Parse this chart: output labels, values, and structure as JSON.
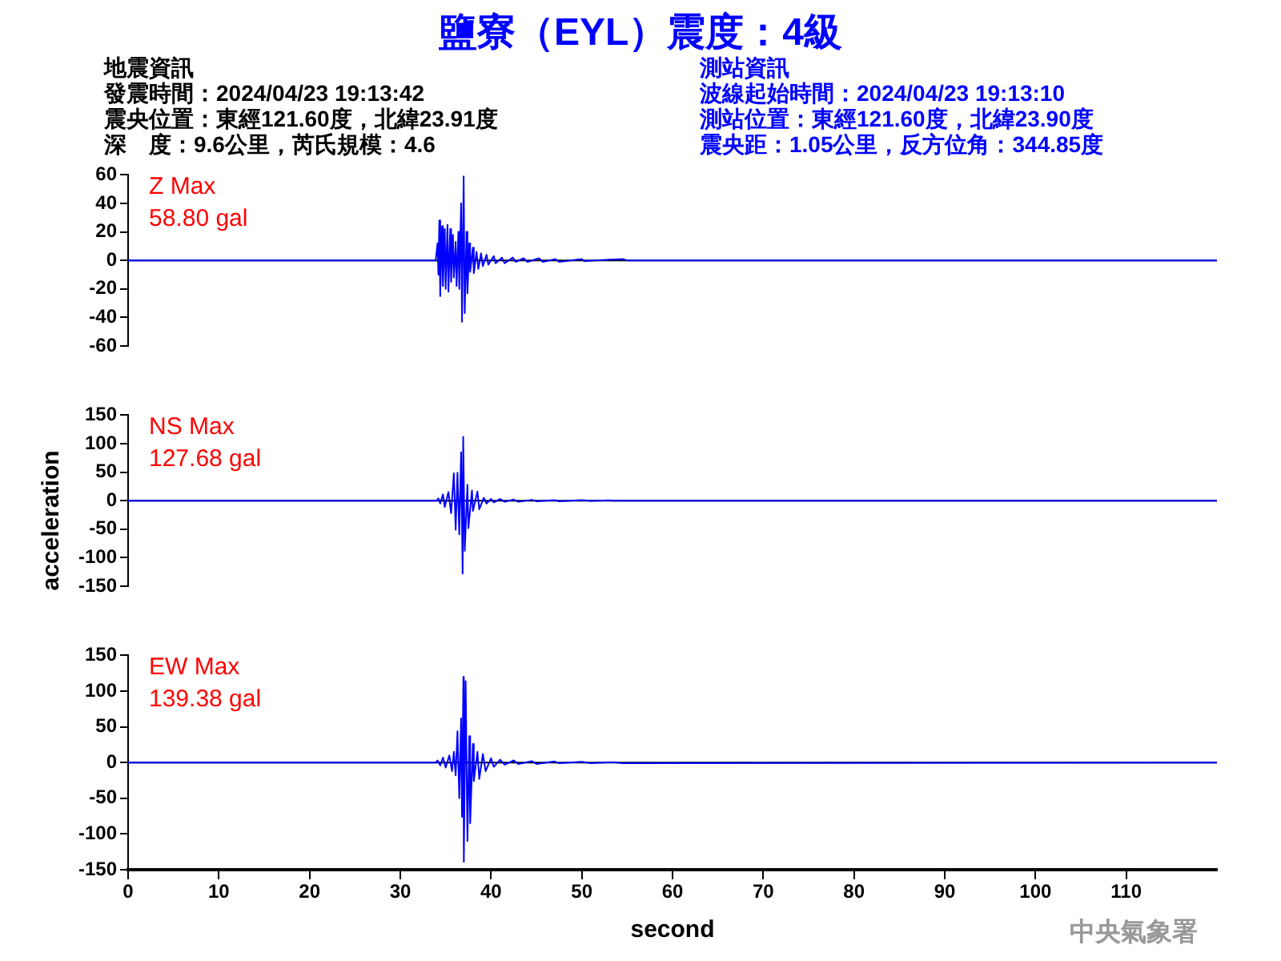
{
  "chart_data": [
    {
      "type": "line",
      "title": "鹽寮（EYL）震度：4級",
      "annotations": [
        "Z Max\n58.80 gal",
        "地震資訊",
        "發震時間：2024/04/23 19:13:42",
        "震央位置：東經121.60度，北緯23.91度",
        "深　度：9.6公里，芮氏規模：4.6",
        "測站資訊",
        "波線起始時間：2024/04/23 19:13:10",
        "測站位置：東經121.60度，北緯23.90度",
        "震央距：1.05公里，反方位角：344.85度"
      ],
      "series": [
        {
          "color": "#0000ff",
          "x": [
            0,
            33.9,
            34.1,
            34.2,
            34.3,
            34.4,
            34.6,
            34.7,
            34.9,
            35.0,
            35.2,
            35.3,
            35.5,
            35.6,
            35.8,
            35.9,
            36.1,
            36.2,
            36.4,
            36.5,
            36.7,
            36.8,
            36.98,
            37.1,
            37.3,
            37.4,
            37.6,
            37.7,
            38.0,
            38.1,
            38.4,
            38.6,
            38.9,
            39.1,
            39.5,
            39.7,
            40.3,
            40.5,
            41.2,
            41.5,
            42.4,
            42.7,
            43.6,
            44.0,
            45.3,
            45.7,
            47.1,
            47.5,
            50.0,
            50.3,
            53.0,
            54.5,
            55.0,
            120
          ],
          "values": [
            0,
            0,
            12,
            -10,
            28,
            -25,
            24,
            -18,
            22,
            -20,
            25,
            -22,
            22,
            -15,
            18,
            -12,
            13,
            -18,
            20,
            -20,
            40,
            -43,
            59,
            -37,
            20,
            -23,
            12,
            -8,
            9,
            -9,
            6,
            -6,
            5,
            -4,
            4,
            -3,
            3,
            -2,
            2,
            -2,
            2,
            -1,
            1.5,
            -1,
            1.5,
            -1,
            1,
            -1,
            1,
            -0.5,
            0.5,
            1,
            0,
            0
          ]
        }
      ],
      "xlim": [
        0,
        120
      ],
      "ylim": [
        -60,
        60
      ],
      "yticks": [
        -60,
        -40,
        -20,
        0,
        20,
        40,
        60
      ],
      "tick_labels": "y",
      "grid": false,
      "marker": "none",
      "ref_lines": [
        {
          "axis": "y",
          "value": 0,
          "color": "#000000"
        }
      ]
    },
    {
      "type": "line",
      "ylabel": "acceleration",
      "annotations": [
        "NS Max\n127.68 gal"
      ],
      "series": [
        {
          "color": "#0000ff",
          "x": [
            0,
            34.0,
            34.2,
            34.4,
            34.7,
            34.9,
            35.3,
            35.6,
            35.9,
            36.1,
            36.3,
            36.5,
            36.7,
            36.87,
            36.93,
            37.1,
            37.4,
            37.5,
            37.9,
            38.0,
            38.5,
            38.7,
            39.2,
            39.5,
            40.0,
            40.3,
            41.0,
            41.5,
            42.5,
            43.0,
            44.5,
            45.0,
            47.0,
            47.5,
            50.0,
            51.0,
            53.0,
            53.5,
            120
          ],
          "values": [
            0,
            0,
            4,
            -5,
            11,
            -11,
            15,
            -22,
            48,
            -51,
            49,
            -59,
            85,
            -128,
            112,
            -88,
            28,
            -48,
            18,
            -18,
            16,
            -15,
            5,
            -5,
            3,
            -3,
            3,
            -2,
            2,
            -2,
            1.5,
            -1,
            1,
            -1,
            1,
            -0.5,
            0.5,
            0,
            0
          ]
        }
      ],
      "xlim": [
        0,
        120
      ],
      "ylim": [
        -150,
        150
      ],
      "yticks": [
        -150,
        -100,
        -50,
        0,
        50,
        100,
        150
      ],
      "tick_labels": "y",
      "grid": false,
      "marker": "none",
      "ref_lines": [
        {
          "axis": "y",
          "value": 0,
          "color": "#000000"
        }
      ]
    },
    {
      "type": "line",
      "xlabel": "second",
      "annotations": [
        "EW Max\n139.38 gal",
        "中央氣象署"
      ],
      "series": [
        {
          "color": "#0000ff",
          "x": [
            0,
            33.9,
            34.1,
            34.4,
            34.7,
            35.0,
            35.4,
            35.7,
            35.9,
            36.1,
            36.3,
            36.5,
            36.7,
            36.8,
            36.95,
            37.0,
            37.2,
            37.4,
            37.6,
            37.7,
            38.0,
            38.1,
            38.5,
            38.7,
            39.1,
            39.4,
            40.0,
            40.3,
            41.0,
            41.5,
            42.5,
            43.0,
            44.5,
            45.0,
            47.0,
            47.5,
            50.0,
            51.0,
            53.5,
            54.5,
            120
          ],
          "values": [
            0,
            0,
            3,
            -4,
            7,
            -7,
            10,
            -12,
            15,
            -18,
            44,
            -50,
            62,
            -76,
            120,
            -139,
            114,
            -110,
            37,
            -85,
            26,
            -26,
            15,
            -23,
            12,
            -12,
            6,
            -6,
            4,
            -3,
            3,
            -2,
            2,
            -2,
            1.5,
            -1,
            1,
            -1,
            0.5,
            -1,
            0
          ]
        }
      ],
      "xlim": [
        0,
        120
      ],
      "xticks": [
        0,
        10,
        20,
        30,
        40,
        50,
        60,
        70,
        80,
        90,
        100,
        110
      ],
      "ylim": [
        -150,
        150
      ],
      "yticks": [
        -150,
        -100,
        -50,
        0,
        50,
        100,
        150
      ],
      "grid": false,
      "marker": "none",
      "ref_lines": [
        {
          "axis": "y",
          "value": 0,
          "color": "#000000"
        }
      ]
    }
  ]
}
